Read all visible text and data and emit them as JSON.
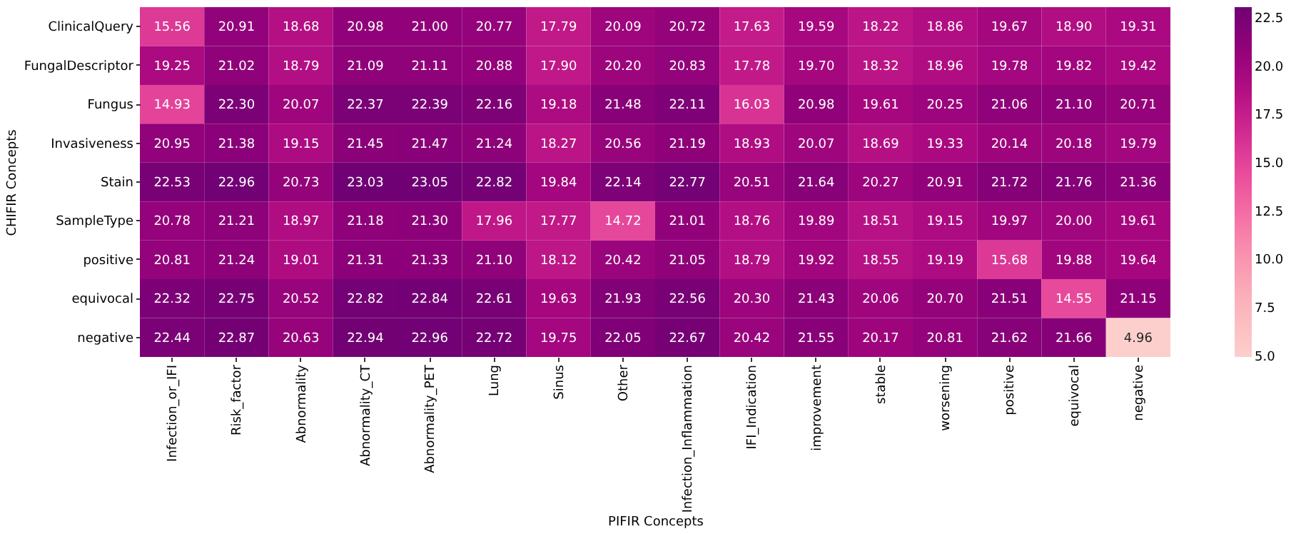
{
  "chart_data": {
    "type": "heatmap",
    "xlabel": "PIFIR Concepts",
    "ylabel": "CHIFIR Concepts",
    "categories": [
      "Infection_or_IFI",
      "Risk_factor",
      "Abnormality",
      "Abnormality_CT",
      "Abnormality_PET",
      "Lung",
      "Sinus",
      "Other",
      "Infection_Inflammation",
      "IFI_Indication",
      "improvement",
      "stable",
      "worsening",
      "positive",
      "equivocal",
      "negative"
    ],
    "y_categories": [
      "ClinicalQuery",
      "FungalDescriptor",
      "Fungus",
      "Invasiveness",
      "Stain",
      "SampleType",
      "positive",
      "equivocal",
      "negative"
    ],
    "cells": [
      [
        15.56,
        20.91,
        18.68,
        20.98,
        21.0,
        20.77,
        17.79,
        20.09,
        20.72,
        17.63,
        19.59,
        18.22,
        18.86,
        19.67,
        18.9,
        19.31
      ],
      [
        19.25,
        21.02,
        18.79,
        21.09,
        21.11,
        20.88,
        17.9,
        20.2,
        20.83,
        17.78,
        19.7,
        18.32,
        18.96,
        19.78,
        19.82,
        19.42
      ],
      [
        14.93,
        22.3,
        20.07,
        22.37,
        22.39,
        22.16,
        19.18,
        21.48,
        22.11,
        16.03,
        20.98,
        19.61,
        20.25,
        21.06,
        21.1,
        20.71
      ],
      [
        20.95,
        21.38,
        19.15,
        21.45,
        21.47,
        21.24,
        18.27,
        20.56,
        21.19,
        18.93,
        20.07,
        18.69,
        19.33,
        20.14,
        20.18,
        19.79
      ],
      [
        22.53,
        22.96,
        20.73,
        23.03,
        23.05,
        22.82,
        19.84,
        22.14,
        22.77,
        20.51,
        21.64,
        20.27,
        20.91,
        21.72,
        21.76,
        21.36
      ],
      [
        20.78,
        21.21,
        18.97,
        21.18,
        21.3,
        17.96,
        17.77,
        14.72,
        21.01,
        18.76,
        19.89,
        18.51,
        19.15,
        19.97,
        20.0,
        19.61
      ],
      [
        20.81,
        21.24,
        19.01,
        21.31,
        21.33,
        21.1,
        18.12,
        20.42,
        21.05,
        18.79,
        19.92,
        18.55,
        19.19,
        15.68,
        19.88,
        19.64
      ],
      [
        22.32,
        22.75,
        20.52,
        22.82,
        22.84,
        22.61,
        19.63,
        21.93,
        22.56,
        20.3,
        21.43,
        20.06,
        20.7,
        21.51,
        14.55,
        21.15
      ],
      [
        22.44,
        22.87,
        20.63,
        22.94,
        22.96,
        22.72,
        19.75,
        22.05,
        22.67,
        20.42,
        21.55,
        20.17,
        20.81,
        21.62,
        21.66,
        4.96
      ]
    ],
    "cell_labels": [
      [
        "15.56",
        "20.91",
        "18.68",
        "20.98",
        "21.00",
        "20.77",
        "17.79",
        "20.09",
        "20.72",
        "17.63",
        "19.59",
        "18.22",
        "18.86",
        "19.67",
        "18.90",
        "19.31"
      ],
      [
        "19.25",
        "21.02",
        "18.79",
        "21.09",
        "21.11",
        "20.88",
        "17.90",
        "20.20",
        "20.83",
        "17.78",
        "19.70",
        "18.32",
        "18.96",
        "19.78",
        "19.82",
        "19.42"
      ],
      [
        "14.93",
        "22.30",
        "20.07",
        "22.37",
        "22.39",
        "22.16",
        "19.18",
        "21.48",
        "22.11",
        "16.03",
        "20.98",
        "19.61",
        "20.25",
        "21.06",
        "21.10",
        "20.71"
      ],
      [
        "20.95",
        "21.38",
        "19.15",
        "21.45",
        "21.47",
        "21.24",
        "18.27",
        "20.56",
        "21.19",
        "18.93",
        "20.07",
        "18.69",
        "19.33",
        "20.14",
        "20.18",
        "19.79"
      ],
      [
        "22.53",
        "22.96",
        "20.73",
        "23.03",
        "23.05",
        "22.82",
        "19.84",
        "22.14",
        "22.77",
        "20.51",
        "21.64",
        "20.27",
        "20.91",
        "21.72",
        "21.76",
        "21.36"
      ],
      [
        "20.78",
        "21.21",
        "18.97",
        "21.18",
        "21.30",
        "17.96",
        "17.77",
        "14.72",
        "21.01",
        "18.76",
        "19.89",
        "18.51",
        "19.15",
        "19.97",
        "20.00",
        "19.61"
      ],
      [
        "20.81",
        "21.24",
        "19.01",
        "21.31",
        "21.33",
        "21.10",
        "18.12",
        "20.42",
        "21.05",
        "18.79",
        "19.92",
        "18.55",
        "19.19",
        "15.68",
        "19.88",
        "19.64"
      ],
      [
        "22.32",
        "22.75",
        "20.52",
        "22.82",
        "22.84",
        "22.61",
        "19.63",
        "21.93",
        "22.56",
        "20.30",
        "21.43",
        "20.06",
        "20.70",
        "21.51",
        "14.55",
        "21.15"
      ],
      [
        "22.44",
        "22.87",
        "20.63",
        "22.94",
        "22.96",
        "22.72",
        "19.75",
        "22.05",
        "22.67",
        "20.42",
        "21.55",
        "20.17",
        "20.81",
        "21.62",
        "21.66",
        "4.96"
      ]
    ],
    "clim": [
      4.96,
      23.05
    ],
    "cticks": [
      {
        "value": 5,
        "label": "5.0"
      },
      7.5,
      {
        "value": 10,
        "label": "10.0"
      },
      12.5,
      {
        "value": 15,
        "label": "15.0"
      },
      17.5,
      {
        "value": 20,
        "label": "20.0"
      },
      22.5
    ]
  }
}
